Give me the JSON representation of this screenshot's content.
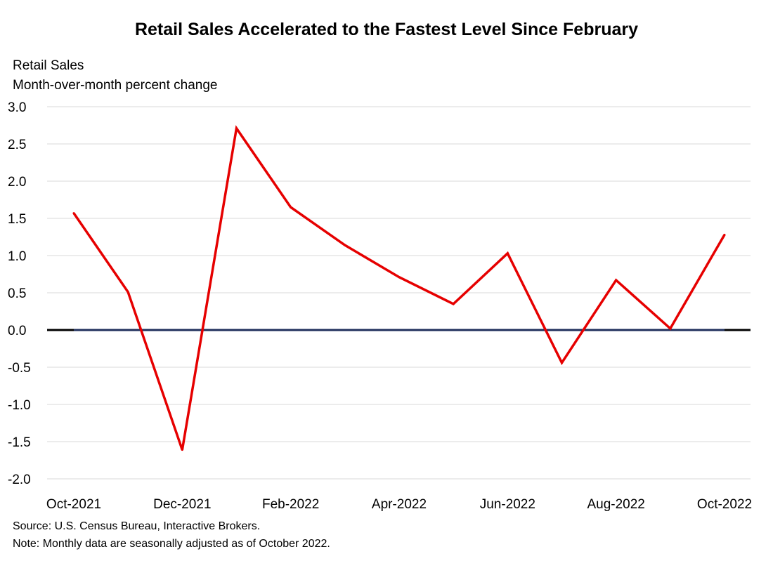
{
  "chart_data": {
    "type": "line",
    "title": "Retail Sales Accelerated to the Fastest Level Since February",
    "ylabel": "Retail Sales",
    "ylabel_sub": "Month-over-month percent change",
    "xlabel": "",
    "ylim": [
      -2.0,
      3.0
    ],
    "yticks": [
      "3.0",
      "2.5",
      "2.0",
      "1.5",
      "1.0",
      "0.5",
      "0.0",
      "-0.5",
      "-1.0",
      "-1.5",
      "-2.0"
    ],
    "x_tick_labels": [
      "Oct-2021",
      "Dec-2021",
      "Feb-2022",
      "Apr-2022",
      "Jun-2022",
      "Aug-2022",
      "Oct-2022"
    ],
    "x": [
      "Oct-2021",
      "Nov-2021",
      "Dec-2021",
      "Jan-2022",
      "Feb-2022",
      "Mar-2022",
      "Apr-2022",
      "May-2022",
      "Jun-2022",
      "Jul-2022",
      "Aug-2022",
      "Sep-2022",
      "Oct-2022"
    ],
    "series": [
      {
        "values": [
          1.57,
          0.51,
          -1.61,
          2.71,
          1.65,
          1.14,
          0.71,
          0.35,
          1.03,
          -0.44,
          0.67,
          0.02,
          1.28
        ],
        "color": "#e60000"
      }
    ],
    "zero_line_color": "#1f2f5c",
    "grid": true,
    "notes": [
      "Source: U.S. Census Bureau, Interactive Brokers.",
      "Note: Monthly data are seasonally adjusted as of October 2022."
    ]
  }
}
